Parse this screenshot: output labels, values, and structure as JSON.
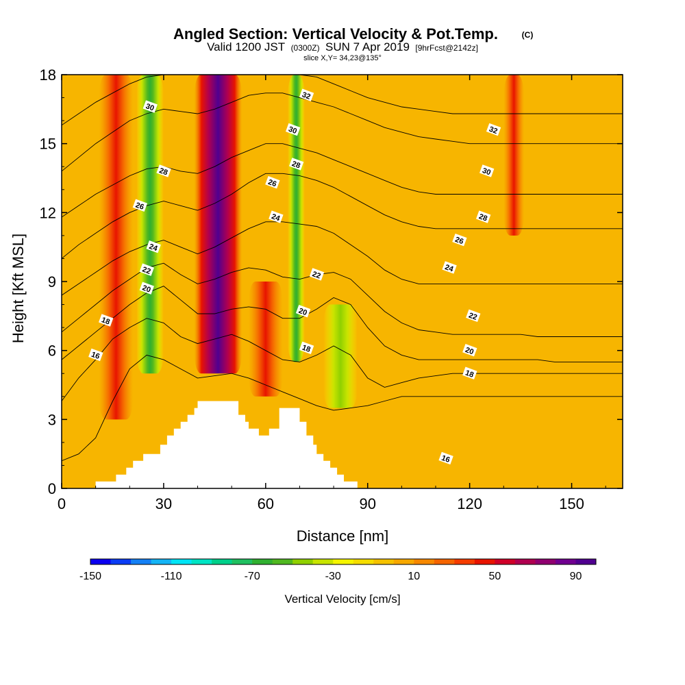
{
  "header": {
    "title_main": "Angled Section: Vertical Velocity & Pot.Temp.",
    "title_tag": "(C)",
    "valid_prefix": "Valid 1200 JST",
    "valid_z": "(0300Z)",
    "valid_date": "SUN 7 Apr 2019",
    "valid_fcst": "[9hrFcst@2142z]",
    "slice": "slice X,Y= 34,23@135°"
  },
  "chart_data": {
    "type": "heatmap",
    "xlabel": "Distance [nm]",
    "ylabel": "Height [Kft MSL]",
    "xlim": [
      0,
      165
    ],
    "ylim": [
      0,
      18
    ],
    "x_ticks": [
      "0",
      "30",
      "60",
      "90",
      "120",
      "150"
    ],
    "y_ticks": [
      "0",
      "3",
      "6",
      "9",
      "12",
      "15",
      "18"
    ],
    "background_color": "#f7b500",
    "velocity_columns": [
      {
        "x": 16,
        "w": 5,
        "bottom": 3,
        "top": 18,
        "value": 50
      },
      {
        "x": 26,
        "w": 4,
        "bottom": 5,
        "top": 18,
        "value": -70
      },
      {
        "x": 46,
        "w": 7,
        "bottom": 5,
        "top": 18,
        "value": 90
      },
      {
        "x": 60,
        "w": 5,
        "bottom": 4,
        "top": 9,
        "value": 50
      },
      {
        "x": 69,
        "w": 2.5,
        "bottom": 5.5,
        "top": 18,
        "value": -70
      },
      {
        "x": 82,
        "w": 5,
        "bottom": 3.5,
        "top": 8,
        "value": -30
      },
      {
        "x": 133,
        "w": 3,
        "bottom": 11,
        "top": 18,
        "value": 50
      }
    ],
    "theta_contours": [
      {
        "level": 16,
        "label_at": [
          10,
          5.8
        ],
        "y": [
          1.2,
          1.5,
          2.2,
          3.8,
          5.2,
          5.8,
          5.6,
          5.2,
          4.8,
          4.9,
          5.0,
          4.8,
          4.5,
          4.2,
          3.9,
          3.6,
          3.4,
          3.5,
          3.6,
          3.8,
          4.0,
          4.0,
          4.0,
          4.0,
          4.0,
          4.0,
          4.0,
          4.0,
          4.0,
          4.0,
          4.0,
          4.0,
          4.0,
          4.0
        ]
      },
      {
        "level": 18,
        "label_at": [
          13,
          7.3
        ],
        "y": [
          3.8,
          4.8,
          5.6,
          6.5,
          7.0,
          7.4,
          7.2,
          6.6,
          6.3,
          6.5,
          6.7,
          6.4,
          6.0,
          5.6,
          5.5,
          5.8,
          6.2,
          5.8,
          4.8,
          4.4,
          4.6,
          4.8,
          4.9,
          5.0,
          5.0,
          5.0,
          5.0,
          5.0,
          5.0,
          5.0,
          5.0,
          5.0,
          5.0,
          5.0
        ]
      },
      {
        "level": 20,
        "label_at": [
          25,
          8.7
        ],
        "y": [
          5.6,
          6.2,
          6.8,
          7.4,
          8.0,
          8.5,
          8.8,
          8.2,
          7.6,
          7.6,
          7.8,
          7.9,
          7.8,
          7.4,
          7.4,
          7.8,
          8.3,
          8.0,
          7.0,
          6.2,
          5.8,
          5.6,
          5.6,
          5.6,
          5.6,
          5.6,
          5.6,
          5.6,
          5.6,
          5.5,
          5.5,
          5.5,
          5.5,
          5.5
        ]
      },
      {
        "level": 22,
        "label_at": [
          25,
          9.5
        ],
        "y": [
          6.8,
          7.4,
          8.0,
          8.6,
          9.1,
          9.6,
          9.8,
          9.3,
          8.9,
          9.1,
          9.4,
          9.6,
          9.5,
          9.2,
          9.1,
          9.3,
          9.4,
          9.1,
          8.4,
          7.7,
          7.2,
          6.9,
          6.8,
          6.7,
          6.7,
          6.7,
          6.7,
          6.7,
          6.6,
          6.6,
          6.6,
          6.6,
          6.6,
          6.6
        ]
      },
      {
        "level": 24,
        "label_at": [
          27,
          10.5
        ],
        "y": [
          8.4,
          8.9,
          9.4,
          9.9,
          10.3,
          10.6,
          10.8,
          10.5,
          10.2,
          10.5,
          10.9,
          11.3,
          11.6,
          11.6,
          11.5,
          11.4,
          11.1,
          10.6,
          10.1,
          9.5,
          9.1,
          8.9,
          8.9,
          8.9,
          8.9,
          8.9,
          8.9,
          8.9,
          8.9,
          8.9,
          8.9,
          8.9,
          8.9,
          8.9
        ]
      },
      {
        "level": 26,
        "label_at": [
          23,
          12.3
        ],
        "y": [
          10.0,
          10.6,
          11.1,
          11.6,
          12.0,
          12.3,
          12.5,
          12.3,
          12.1,
          12.4,
          12.8,
          13.3,
          13.7,
          13.7,
          13.6,
          13.4,
          13.1,
          12.7,
          12.3,
          11.9,
          11.6,
          11.4,
          11.3,
          11.3,
          11.3,
          11.3,
          11.3,
          11.3,
          11.3,
          11.3,
          11.3,
          11.3,
          11.3,
          11.3
        ]
      },
      {
        "level": 28,
        "label_at": [
          30,
          13.8
        ],
        "y": [
          11.8,
          12.3,
          12.8,
          13.2,
          13.6,
          13.9,
          14.0,
          13.8,
          13.7,
          14.0,
          14.4,
          14.7,
          15.0,
          15.0,
          14.8,
          14.6,
          14.3,
          14.0,
          13.7,
          13.4,
          13.1,
          12.9,
          12.8,
          12.8,
          12.8,
          12.8,
          12.8,
          12.8,
          12.8,
          12.8,
          12.8,
          12.8,
          12.8,
          12.8
        ]
      },
      {
        "level": 30,
        "label_at": [
          26,
          16.6
        ],
        "y": [
          13.8,
          14.4,
          15.0,
          15.5,
          16.0,
          16.3,
          16.5,
          16.4,
          16.3,
          16.5,
          16.8,
          17.1,
          17.2,
          17.2,
          17.0,
          16.8,
          16.6,
          16.3,
          16.0,
          15.7,
          15.5,
          15.3,
          15.2,
          15.1,
          15.0,
          15.0,
          15.0,
          15.0,
          15.0,
          15.0,
          15.0,
          15.0,
          15.0,
          15.0
        ]
      },
      {
        "level": 32,
        "label_at": [
          72,
          17.1
        ],
        "y": [
          15.8,
          16.3,
          16.8,
          17.2,
          17.6,
          17.9,
          18.0,
          18.0,
          18.0,
          18.0,
          18.0,
          18.0,
          18.0,
          18.0,
          18.0,
          17.9,
          17.6,
          17.3,
          17.0,
          16.8,
          16.6,
          16.5,
          16.4,
          16.3,
          16.3,
          16.3,
          16.3,
          16.3,
          16.3,
          16.3,
          16.3,
          16.3,
          16.3,
          16.3
        ]
      }
    ],
    "extra_contour_labels": [
      {
        "text": "30",
        "at": [
          68,
          15.6
        ]
      },
      {
        "text": "28",
        "at": [
          69,
          14.1
        ]
      },
      {
        "text": "26",
        "at": [
          62,
          13.3
        ]
      },
      {
        "text": "24",
        "at": [
          63,
          11.8
        ]
      },
      {
        "text": "22",
        "at": [
          75,
          9.3
        ]
      },
      {
        "text": "20",
        "at": [
          71,
          7.7
        ]
      },
      {
        "text": "18",
        "at": [
          72,
          6.1
        ]
      },
      {
        "text": "32",
        "at": [
          127,
          15.6
        ]
      },
      {
        "text": "30",
        "at": [
          125,
          13.8
        ]
      },
      {
        "text": "28",
        "at": [
          124,
          11.8
        ]
      },
      {
        "text": "26",
        "at": [
          117,
          10.8
        ]
      },
      {
        "text": "24",
        "at": [
          114,
          9.6
        ]
      },
      {
        "text": "22",
        "at": [
          121,
          7.5
        ]
      },
      {
        "text": "20",
        "at": [
          120,
          6.0
        ]
      },
      {
        "text": "18",
        "at": [
          120,
          5.0
        ]
      },
      {
        "text": "16",
        "at": [
          113,
          1.3
        ]
      }
    ],
    "terrain": [
      [
        0,
        0
      ],
      [
        10,
        0
      ],
      [
        10,
        0.3
      ],
      [
        16,
        0.3
      ],
      [
        16,
        0.6
      ],
      [
        19,
        0.6
      ],
      [
        19,
        0.9
      ],
      [
        21,
        0.9
      ],
      [
        21,
        1.2
      ],
      [
        24,
        1.2
      ],
      [
        24,
        1.5
      ],
      [
        29,
        1.5
      ],
      [
        29,
        1.9
      ],
      [
        31,
        1.9
      ],
      [
        31,
        2.3
      ],
      [
        33,
        2.3
      ],
      [
        33,
        2.6
      ],
      [
        35,
        2.6
      ],
      [
        35,
        2.9
      ],
      [
        37,
        2.9
      ],
      [
        37,
        3.2
      ],
      [
        39,
        3.2
      ],
      [
        39,
        3.5
      ],
      [
        40,
        3.5
      ],
      [
        40,
        3.8
      ],
      [
        46,
        3.8
      ],
      [
        46,
        3.8
      ],
      [
        52,
        3.8
      ],
      [
        52,
        3.2
      ],
      [
        54,
        3.2
      ],
      [
        54,
        2.9
      ],
      [
        55,
        2.9
      ],
      [
        55,
        2.6
      ],
      [
        58,
        2.6
      ],
      [
        58,
        2.3
      ],
      [
        61,
        2.3
      ],
      [
        61,
        2.6
      ],
      [
        64,
        2.6
      ],
      [
        64,
        3.5
      ],
      [
        70,
        3.5
      ],
      [
        70,
        2.9
      ],
      [
        72,
        2.9
      ],
      [
        72,
        2.3
      ],
      [
        74,
        2.3
      ],
      [
        74,
        1.9
      ],
      [
        75,
        1.9
      ],
      [
        75,
        1.5
      ],
      [
        77,
        1.5
      ],
      [
        77,
        1.2
      ],
      [
        79,
        1.2
      ],
      [
        79,
        0.9
      ],
      [
        81,
        0.9
      ],
      [
        81,
        0.6
      ],
      [
        83,
        0.6
      ],
      [
        83,
        0.3
      ],
      [
        87,
        0.3
      ],
      [
        87,
        0
      ],
      [
        165,
        0
      ]
    ],
    "colorbar": {
      "label": "Vertical Velocity [cm/s]",
      "tick_labels": [
        "-150",
        "-110",
        "-70",
        "-30",
        "10",
        "50",
        "90"
      ],
      "colors": [
        "#0a00f0",
        "#0a3cf5",
        "#1480f5",
        "#14b4f5",
        "#00e4f5",
        "#00e4c4",
        "#00d08a",
        "#20c060",
        "#30b030",
        "#50b820",
        "#90d000",
        "#c8e400",
        "#f5f500",
        "#f5dd00",
        "#f5c200",
        "#f7a800",
        "#f78800",
        "#f56400",
        "#f53c00",
        "#e81400",
        "#d00028",
        "#b00050",
        "#900070",
        "#700090",
        "#500090"
      ]
    }
  }
}
